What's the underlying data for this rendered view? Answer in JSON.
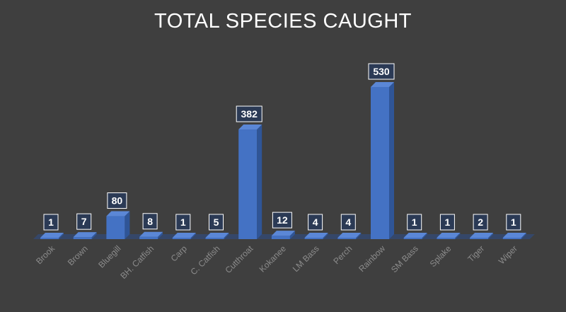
{
  "chart_data": {
    "type": "bar",
    "title": "TOTAL SPECIES CAUGHT",
    "xlabel": "",
    "ylabel": "",
    "categories": [
      "Brook",
      "Brown",
      "Bluegill",
      "BH. Catfish",
      "Carp",
      "C. Catfish",
      "Cutthroat",
      "Kokanee",
      "LM Bass",
      "Perch",
      "Rainbow",
      "SM Bass",
      "Splake",
      "Tiger",
      "Wiper"
    ],
    "values": [
      1,
      7,
      80,
      8,
      1,
      5,
      382,
      12,
      4,
      4,
      530,
      1,
      1,
      2,
      1
    ],
    "ylim": [
      0,
      530
    ],
    "grid": false,
    "legend": "none",
    "style": "3d-column",
    "colors": {
      "background": "#3f3f3f",
      "bar_front": "#4472c4",
      "bar_side": "#2f5597",
      "bar_top": "#5b87d6",
      "floor": "#2e4f8c",
      "label_box": "#2b3a55",
      "label_border": "#ffffff",
      "title": "#ffffff",
      "tick_label": "#8c8c8c"
    }
  }
}
